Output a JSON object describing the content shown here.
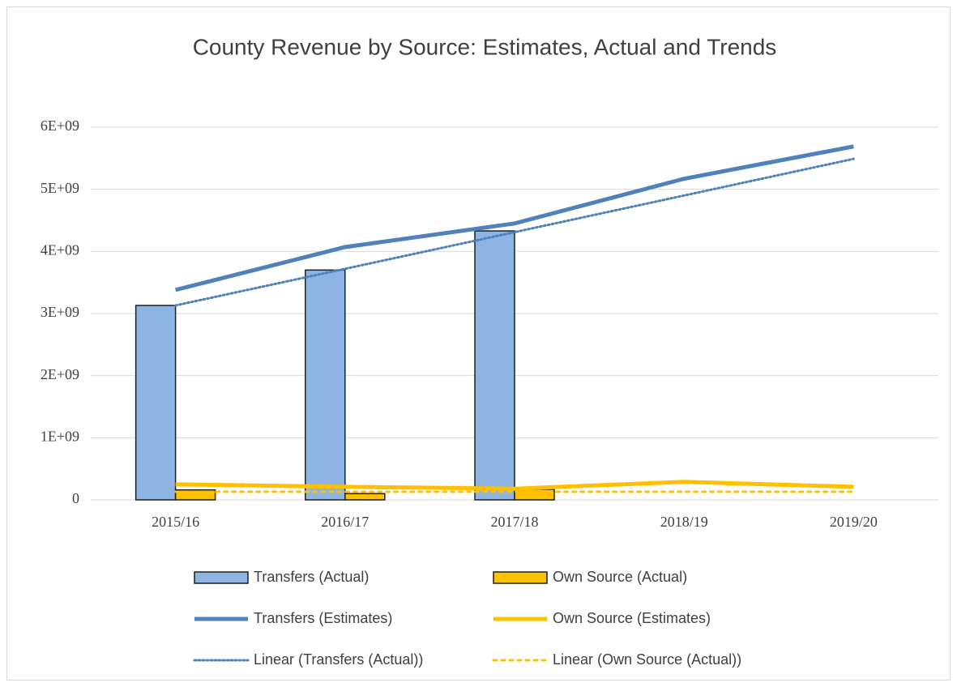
{
  "chart_data": {
    "type": "bar",
    "title": "County Revenue by Source: Estimates, Actual and Trends",
    "categories": [
      "2015/16",
      "2016/17",
      "2017/18",
      "2018/19",
      "2019/20"
    ],
    "series": [
      {
        "name": "Transfers (Actual)",
        "type": "bar",
        "color": "#8eb4e3",
        "values": [
          3130000000,
          3700000000,
          4330000000,
          null,
          null
        ]
      },
      {
        "name": "Own Source (Actual)",
        "type": "bar",
        "color": "#ffc000",
        "values": [
          160000000,
          100000000,
          170000000,
          null,
          null
        ]
      },
      {
        "name": "Transfers (Estimates)",
        "type": "line",
        "color": "#4f81bd",
        "values": [
          3380000000,
          4070000000,
          4450000000,
          5170000000,
          5690000000
        ]
      },
      {
        "name": "Own Source (Estimates)",
        "type": "line",
        "color": "#ffc000",
        "values": [
          250000000,
          210000000,
          180000000,
          290000000,
          210000000
        ]
      },
      {
        "name": "Linear  (Transfers (Actual))",
        "type": "line",
        "dotted": true,
        "color": "#4f81bd",
        "values": [
          3130000000,
          3720000000,
          4310000000,
          4900000000,
          5490000000
        ]
      },
      {
        "name": "Linear  (Own Source (Actual))",
        "type": "line",
        "dotted": true,
        "color": "#ffc000",
        "values": [
          130000000,
          130000000,
          130000000,
          130000000,
          130000000
        ]
      }
    ],
    "ylim": [
      0,
      6000000000
    ],
    "yticks": [
      0,
      {
        "value": 1000000000,
        "label": "1E+09"
      },
      {
        "value": 2000000000,
        "label": "2E+09"
      },
      {
        "value": 3000000000,
        "label": "3E+09"
      },
      {
        "value": 4000000000,
        "label": "4E+09"
      },
      {
        "value": 5000000000,
        "label": "5E+09"
      },
      {
        "value": 6000000000,
        "label": "6E+09"
      }
    ],
    "grid": true
  }
}
